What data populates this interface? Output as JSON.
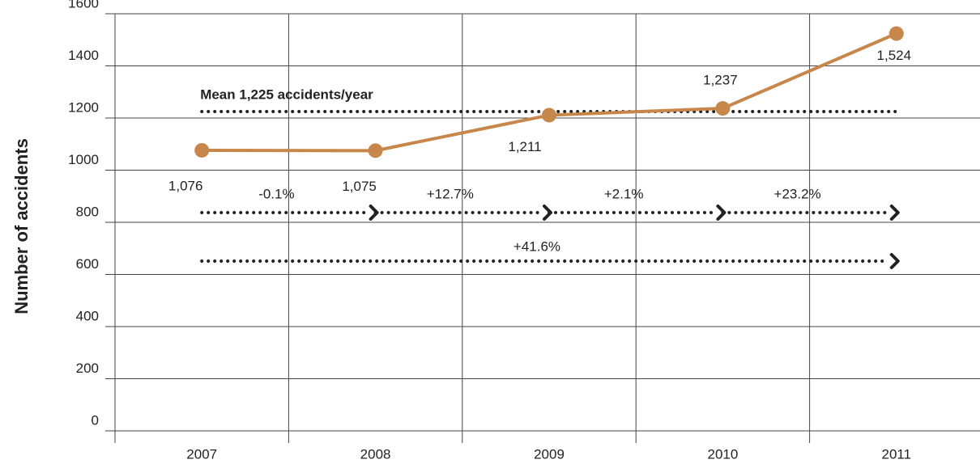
{
  "chart_data": {
    "type": "line",
    "y_axis_label": "Number of accidents",
    "categories": [
      "2007",
      "2008",
      "2009",
      "2010",
      "2011"
    ],
    "values": [
      1076,
      1075,
      1211,
      1237,
      1524
    ],
    "value_labels": [
      "1,076",
      "1,075",
      "1,211",
      "1,237",
      "1,524"
    ],
    "color": "#c8874a",
    "ylim": [
      0,
      1600
    ],
    "yticks": [
      0,
      200,
      400,
      600,
      800,
      1000,
      1200,
      1400,
      1600
    ],
    "grid": true,
    "mean": {
      "value": 1225,
      "label": "Mean 1,225 accidents/year"
    },
    "changes": [
      "-0.1%",
      "+12.7%",
      "+2.1%",
      "+23.2%"
    ],
    "overall_change": "+41.6%"
  }
}
